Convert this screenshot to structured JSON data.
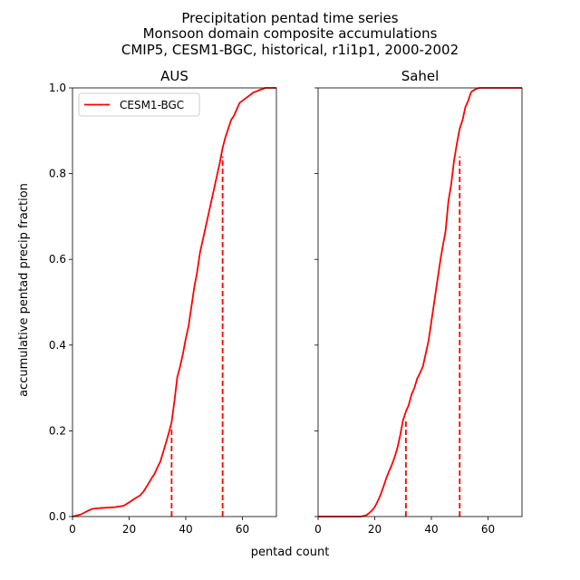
{
  "figure": {
    "title_lines": [
      "Precipitation pentad time series",
      "Monsoon domain composite accumulations",
      "CMIP5, CESM1-BGC, historical, r1i1p1, 2000-2002"
    ],
    "shared_xlabel": "pentad count",
    "shared_ylabel": "accumulative pentad precip fraction"
  },
  "colors": {
    "series": "#ff0000",
    "axes": "#000000"
  },
  "chart_data": [
    {
      "type": "line",
      "title": "AUS",
      "xlim": [
        0,
        72
      ],
      "ylim": [
        0,
        1.0
      ],
      "xticks": [
        0,
        20,
        40,
        60
      ],
      "yticks": [
        0.0,
        0.2,
        0.4,
        0.6,
        0.8,
        1.0
      ],
      "ytick_labels": [
        "0.0",
        "0.2",
        "0.4",
        "0.6",
        "0.8",
        "1.0"
      ],
      "legend": {
        "position": "top-left",
        "entries": [
          "CESM1-BGC"
        ]
      },
      "series": [
        {
          "name": "CESM1-BGC",
          "x": [
            0,
            3,
            5,
            7,
            10,
            13,
            15,
            18,
            20,
            22,
            24,
            25,
            26,
            28,
            29,
            30,
            31,
            32,
            33,
            34,
            35,
            36,
            37,
            38,
            39,
            40,
            41,
            42,
            43,
            44,
            45,
            46,
            47,
            48,
            49,
            50,
            51,
            52,
            53,
            54,
            55,
            56,
            57,
            58,
            59,
            60,
            61,
            62,
            63,
            64,
            65,
            66,
            67,
            68,
            70,
            72
          ],
          "y": [
            0.0,
            0.005,
            0.012,
            0.018,
            0.02,
            0.021,
            0.022,
            0.025,
            0.033,
            0.042,
            0.05,
            0.058,
            0.068,
            0.09,
            0.1,
            0.115,
            0.128,
            0.15,
            0.172,
            0.195,
            0.22,
            0.27,
            0.325,
            0.35,
            0.38,
            0.415,
            0.445,
            0.49,
            0.535,
            0.57,
            0.615,
            0.645,
            0.675,
            0.705,
            0.735,
            0.765,
            0.795,
            0.825,
            0.86,
            0.885,
            0.905,
            0.925,
            0.935,
            0.95,
            0.965,
            0.97,
            0.975,
            0.98,
            0.985,
            0.99,
            0.992,
            0.995,
            0.997,
            1.0,
            1.0,
            1.0
          ]
        }
      ],
      "vlines": [
        {
          "x": 35,
          "y_top": 0.21
        },
        {
          "x": 53,
          "y_top": 0.84
        }
      ]
    },
    {
      "type": "line",
      "title": "Sahel",
      "xlim": [
        0,
        72
      ],
      "ylim": [
        0,
        1.0
      ],
      "xticks": [
        0,
        20,
        40,
        60
      ],
      "yticks": [
        0.0,
        0.2,
        0.4,
        0.6,
        0.8,
        1.0
      ],
      "series": [
        {
          "name": "CESM1-BGC",
          "x": [
            0,
            5,
            10,
            15,
            17,
            18,
            19,
            20,
            21,
            22,
            23,
            24,
            25,
            26,
            27,
            28,
            29,
            30,
            31,
            32,
            33,
            34,
            35,
            36,
            37,
            38,
            39,
            40,
            41,
            42,
            43,
            44,
            45,
            46,
            47,
            48,
            49,
            50,
            51,
            52,
            53,
            54,
            55,
            56,
            57,
            58,
            60,
            62,
            65,
            72
          ],
          "y": [
            0.0,
            0.0,
            0.0,
            0.0,
            0.003,
            0.008,
            0.014,
            0.022,
            0.035,
            0.05,
            0.068,
            0.088,
            0.105,
            0.12,
            0.138,
            0.16,
            0.19,
            0.225,
            0.245,
            0.26,
            0.285,
            0.3,
            0.322,
            0.335,
            0.35,
            0.38,
            0.41,
            0.455,
            0.5,
            0.545,
            0.59,
            0.63,
            0.665,
            0.735,
            0.775,
            0.83,
            0.87,
            0.905,
            0.925,
            0.955,
            0.97,
            0.99,
            0.995,
            0.998,
            1.0,
            1.0,
            1.0,
            1.0,
            1.0,
            1.0
          ]
        }
      ],
      "vlines": [
        {
          "x": 31,
          "y_top": 0.225
        },
        {
          "x": 50,
          "y_top": 0.84
        }
      ]
    }
  ]
}
